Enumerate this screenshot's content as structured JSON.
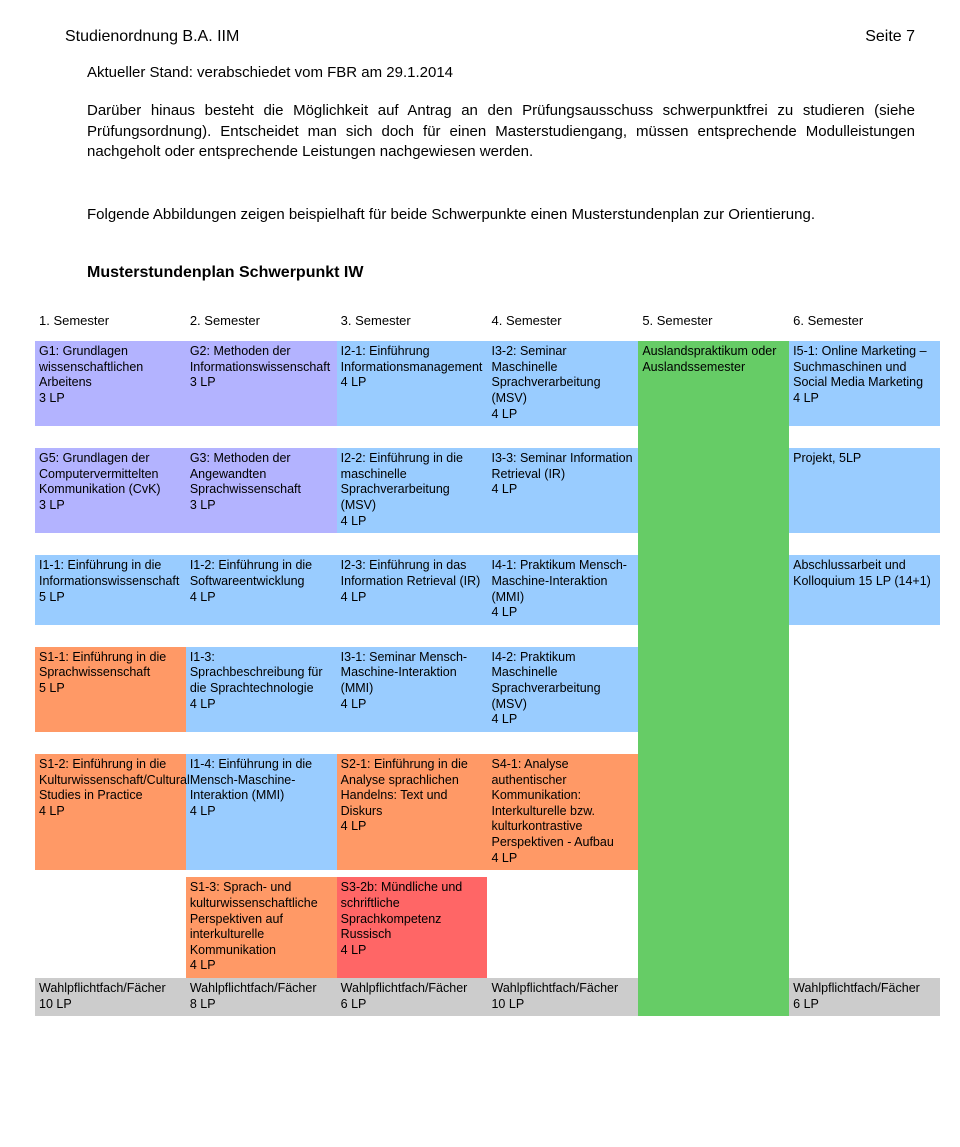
{
  "colors": {
    "purple": "#b3b3ff",
    "blue": "#99ccff",
    "blue2": "#99ccff",
    "green": "#66cc66",
    "orange": "#ff9966",
    "red": "#ff6666",
    "grey": "#cccccc"
  },
  "header": {
    "left": "Studienordnung B.A. IIM",
    "right": "Seite 7"
  },
  "subheader": "Aktueller Stand: verabschiedet vom FBR am 29.1.2014",
  "para1": "Darüber hinaus besteht die Möglichkeit auf Antrag an den Prüfungsausschuss schwerpunktfrei zu studieren (siehe Prüfungsordnung). Entscheidet man sich doch für einen Masterstudiengang, müssen entsprechende Modulleistungen nachgeholt oder entsprechende Leistungen nachgewiesen werden.",
  "para2": "Folgende Abbildungen zeigen beispielhaft für beide Schwerpunkte einen Musterstundenplan zur Orientierung.",
  "heading": "Musterstundenplan Schwerpunkt IW",
  "sem_headers": [
    "1. Semester",
    "2. Semester",
    "3. Semester",
    "4. Semester",
    "5. Semester",
    "6. Semester"
  ],
  "rows": [
    [
      {
        "t": "G1: Grundlagen wissenschaftlichen Arbeitens\n3 LP",
        "c": "purple"
      },
      {
        "t": "G2: Methoden der Informationswissenschaft\n3 LP",
        "c": "purple"
      },
      {
        "t": "I2-1: Einführung Informationsmanagement\n4 LP",
        "c": "blue"
      },
      {
        "t": "I3-2: Seminar Maschinelle Sprachverarbeitung (MSV)\n4 LP",
        "c": "blue"
      },
      {
        "t": "Auslandspraktikum oder Auslandssemester",
        "c": "green",
        "rowspan": 12
      },
      {
        "t": "I5-1: Online Marketing – Suchmaschinen und Social Media Marketing\n4 LP",
        "c": "blue"
      }
    ],
    [
      {
        "t": "G5: Grundlagen der Computervermittelten Kommunikation (CvK)\n3 LP",
        "c": "purple"
      },
      {
        "t": "G3: Methoden der Angewandten Sprachwissenschaft\n3 LP",
        "c": "purple"
      },
      {
        "t": "I2-2: Einführung in die maschinelle Sprachverarbeitung (MSV)\n4 LP",
        "c": "blue"
      },
      {
        "t": "I3-3: Seminar Information Retrieval (IR)\n4 LP",
        "c": "blue"
      },
      null,
      {
        "t": "Projekt, 5LP",
        "c": "blue"
      }
    ],
    [
      {
        "t": "I1-1: Einführung in die Informationswissenschaft\n5 LP",
        "c": "blue"
      },
      {
        "t": "I1-2: Einführung in die Softwareentwicklung\n4 LP",
        "c": "blue"
      },
      {
        "t": "I2-3: Einführung in das Information Retrieval (IR)\n4 LP",
        "c": "blue"
      },
      {
        "t": "I4-1: Praktikum Mensch-Maschine-Interaktion (MMI)\n4 LP",
        "c": "blue"
      },
      null,
      {
        "t": "Abschlussarbeit und Kolloquium 15 LP (14+1)",
        "c": "blue"
      }
    ],
    [
      {
        "t": "S1-1: Einführung in die Sprachwissenschaft\n5 LP",
        "c": "orange"
      },
      {
        "t": "I1-3: Sprachbeschreibung für die Sprachtechnologie\n4 LP",
        "c": "blue"
      },
      {
        "t": "I3-1: Seminar Mensch-Maschine-Interaktion (MMI)\n4 LP",
        "c": "blue"
      },
      {
        "t": "I4-2: Praktikum Maschinelle Sprachverarbeitung (MSV)\n4 LP",
        "c": "blue"
      },
      null,
      null
    ],
    [
      {
        "t": "S1-2: Einführung in die Kulturwissenschaft/Cultural Studies in Practice\n4 LP",
        "c": "orange"
      },
      {
        "t": "I1-4: Einführung in die Mensch-Maschine-Interaktion (MMI)\n4 LP",
        "c": "blue"
      },
      {
        "t": "S2-1: Einführung in die Analyse sprachlichen Handelns: Text und Diskurs\n4 LP",
        "c": "orange"
      },
      {
        "t": "S4-1: Analyse authentischer Kommunikation: Interkulturelle bzw. kulturkontrastive Perspektiven - Aufbau\n4 LP",
        "c": "orange"
      },
      null,
      null
    ],
    [
      null,
      {
        "t": "S1-3: Sprach- und kulturwissenschaftliche Perspektiven auf interkulturelle Kommunikation\n4 LP",
        "c": "orange"
      },
      {
        "t": "S3-2b: Mündliche und schriftliche Sprachkompetenz Russisch\n4 LP",
        "c": "red"
      },
      null,
      null,
      null
    ]
  ],
  "footer_row": [
    {
      "t": "Wahlpflichtfach/Fächer\n10 LP",
      "c": "grey"
    },
    {
      "t": "Wahlpflichtfach/Fächer\n8 LP",
      "c": "grey"
    },
    {
      "t": "Wahlpflichtfach/Fächer\n6 LP",
      "c": "grey"
    },
    {
      "t": "Wahlpflichtfach/Fächer\n10 LP",
      "c": "grey"
    },
    null,
    {
      "t": "Wahlpflichtfach/Fächer\n6 LP",
      "c": "grey"
    }
  ]
}
